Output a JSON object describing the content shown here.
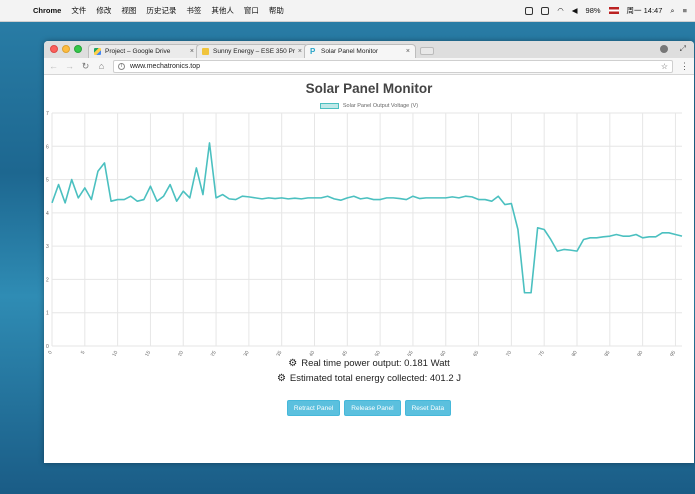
{
  "menubar": {
    "app_name": "Chrome",
    "items": [
      "文件",
      "修改",
      "视图",
      "历史记录",
      "书签",
      "其他人",
      "窗口",
      "帮助"
    ],
    "battery": "98%",
    "clock": "周一 14:47"
  },
  "browser": {
    "tabs": [
      {
        "title": "Project – Google Drive",
        "icon": "google-drive-icon"
      },
      {
        "title": "Sunny Energy – ESE 350 Proje",
        "icon": "folder-icon"
      },
      {
        "title": "Solar Panel Monitor",
        "icon": "p-icon",
        "active": true
      }
    ],
    "url": "www.mechatronics.top"
  },
  "page": {
    "title": "Solar Panel Monitor",
    "power_text": "Real time power output: 0.181 Watt",
    "energy_text": "Estimated total energy collected: 401.2 J",
    "buttons": {
      "retract": "Retract Panel",
      "release": "Release Panel",
      "reset": "Reset Data"
    }
  },
  "chart_data": {
    "type": "line",
    "legend": "Solar Panel Output Voltage (V)",
    "color": "#4bc0c0",
    "ylim": [
      0,
      7
    ],
    "yticks": [
      0,
      1,
      2,
      3,
      4,
      5,
      6,
      7
    ],
    "xlim": [
      0,
      96
    ],
    "xticks": [
      0,
      5,
      10,
      15,
      20,
      25,
      30,
      35,
      40,
      45,
      50,
      55,
      60,
      65,
      70,
      75,
      80,
      85,
      90,
      95
    ],
    "grid": true,
    "legend_position": "top",
    "values": [
      4.3,
      4.85,
      4.3,
      5.0,
      4.45,
      4.75,
      4.4,
      5.25,
      5.5,
      4.35,
      4.4,
      4.4,
      4.5,
      4.35,
      4.4,
      4.8,
      4.35,
      4.5,
      4.85,
      4.35,
      4.65,
      4.45,
      5.35,
      4.55,
      6.1,
      4.45,
      4.55,
      4.42,
      4.4,
      4.5,
      4.48,
      4.45,
      4.42,
      4.45,
      4.43,
      4.45,
      4.42,
      4.44,
      4.42,
      4.45,
      4.45,
      4.45,
      4.5,
      4.42,
      4.38,
      4.45,
      4.5,
      4.42,
      4.45,
      4.4,
      4.4,
      4.45,
      4.45,
      4.43,
      4.4,
      4.5,
      4.43,
      4.45,
      4.45,
      4.45,
      4.45,
      4.48,
      4.45,
      4.5,
      4.48,
      4.4,
      4.4,
      4.35,
      4.5,
      4.25,
      4.28,
      3.5,
      1.6,
      1.6,
      3.55,
      3.5,
      3.2,
      2.85,
      2.9,
      2.88,
      2.85,
      3.2,
      3.25,
      3.25,
      3.28,
      3.3,
      3.35,
      3.3,
      3.3,
      3.35,
      3.25,
      3.28,
      3.28,
      3.4,
      3.4,
      3.35,
      3.3
    ]
  }
}
